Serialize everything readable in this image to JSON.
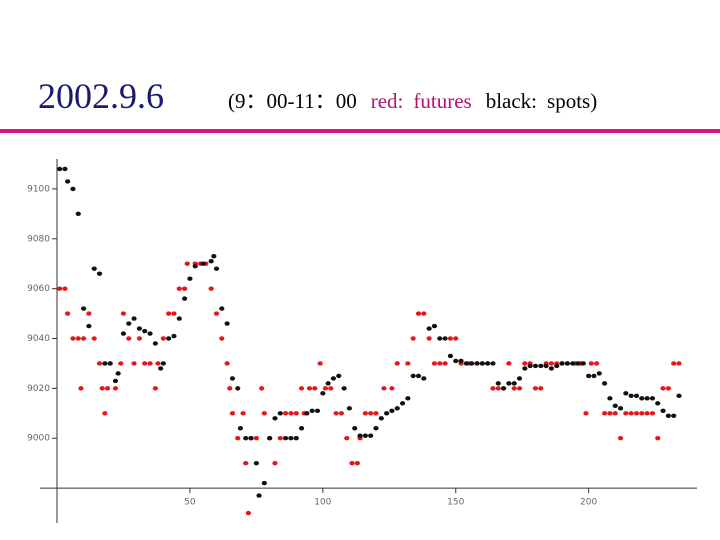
{
  "header": {
    "date": "2002.9.6",
    "note": {
      "range": "(9：00-11：00",
      "red_label": "red:",
      "red_desc": "futures",
      "black_label": "black:",
      "black_desc": "spots)"
    }
  },
  "chart_data": {
    "type": "scatter",
    "xlim": [
      0,
      237
    ],
    "ylim": [
      8966,
      9112
    ],
    "x_axis_crossing": 8980,
    "xticks": [
      50,
      100,
      150,
      200
    ],
    "yticks": [
      9000,
      9020,
      9040,
      9060,
      9080,
      9100
    ],
    "series": [
      {
        "color": "#e8141c",
        "x": [
          1,
          3,
          4,
          6,
          8,
          9,
          10,
          12,
          14,
          16,
          17,
          18,
          19,
          20,
          22,
          24,
          25,
          27,
          29,
          31,
          33,
          35,
          37,
          38,
          40,
          42,
          44,
          46,
          48,
          49,
          52,
          54,
          56,
          58,
          60,
          62,
          64,
          65,
          66,
          68,
          70,
          71,
          72,
          73,
          75,
          77,
          78,
          80,
          82,
          84,
          86,
          88,
          90,
          92,
          93,
          95,
          97,
          99,
          101,
          103,
          105,
          107,
          109,
          111,
          113,
          114,
          116,
          118,
          120,
          123,
          126,
          128,
          132,
          134,
          136,
          138,
          140,
          142,
          144,
          146,
          148,
          150,
          152,
          155,
          158,
          160,
          162,
          164,
          166,
          168,
          170,
          172,
          174,
          176,
          178,
          180,
          182,
          184,
          186,
          188,
          190,
          192,
          195,
          197,
          199,
          201,
          203,
          206,
          208,
          210,
          212,
          214,
          216,
          218,
          220,
          222,
          224,
          226,
          228,
          230,
          232,
          234
        ],
        "values": [
          9060,
          9060,
          9050,
          9040,
          9040,
          9020,
          9040,
          9050,
          9040,
          9030,
          9020,
          9010,
          9020,
          9030,
          9020,
          9030,
          9050,
          9040,
          9030,
          9040,
          9030,
          9030,
          9020,
          9030,
          9040,
          9050,
          9050,
          9060,
          9060,
          9070,
          9070,
          9070,
          9070,
          9060,
          9050,
          9040,
          9030,
          9020,
          9010,
          9000,
          9010,
          8990,
          8970,
          9000,
          9000,
          9020,
          9010,
          9000,
          8990,
          9000,
          9010,
          9010,
          9010,
          9020,
          9010,
          9020,
          9020,
          9030,
          9020,
          9020,
          9010,
          9010,
          9000,
          8990,
          8990,
          9000,
          9010,
          9010,
          9010,
          9020,
          9020,
          9030,
          9030,
          9040,
          9050,
          9050,
          9040,
          9030,
          9030,
          9030,
          9040,
          9040,
          9030,
          9030,
          9030,
          9030,
          9030,
          9020,
          9020,
          9020,
          9030,
          9020,
          9020,
          9030,
          9030,
          9020,
          9020,
          9030,
          9030,
          9030,
          9030,
          9030,
          9030,
          9030,
          9010,
          9030,
          9030,
          9010,
          9010,
          9010,
          9000,
          9010,
          9010,
          9010,
          9010,
          9010,
          9010,
          9000,
          9020,
          9020,
          9030,
          9030
        ]
      },
      {
        "color": "#111111",
        "x": [
          1,
          3,
          4,
          6,
          8,
          10,
          12,
          14,
          16,
          18,
          20,
          22,
          23,
          25,
          27,
          29,
          31,
          33,
          35,
          37,
          39,
          40,
          42,
          44,
          46,
          48,
          50,
          52,
          55,
          58,
          59,
          60,
          62,
          64,
          66,
          68,
          69,
          71,
          73,
          75,
          76,
          78,
          80,
          82,
          84,
          86,
          88,
          90,
          92,
          94,
          96,
          98,
          100,
          102,
          104,
          106,
          108,
          110,
          112,
          114,
          116,
          118,
          120,
          122,
          124,
          126,
          128,
          130,
          132,
          134,
          136,
          138,
          140,
          142,
          144,
          146,
          148,
          150,
          152,
          154,
          156,
          158,
          160,
          162,
          164,
          166,
          168,
          170,
          172,
          174,
          176,
          178,
          180,
          182,
          184,
          186,
          188,
          190,
          192,
          194,
          196,
          198,
          200,
          202,
          204,
          206,
          208,
          210,
          212,
          214,
          216,
          218,
          220,
          222,
          224,
          226,
          228,
          230,
          232,
          234
        ],
        "values": [
          9108,
          9108,
          9103,
          9100,
          9090,
          9052,
          9045,
          9068,
          9066,
          9030,
          9030,
          9023,
          9026,
          9042,
          9046,
          9048,
          9044,
          9043,
          9042,
          9038,
          9028,
          9030,
          9040,
          9041,
          9048,
          9056,
          9064,
          9069,
          9070,
          9071,
          9073,
          9068,
          9052,
          9046,
          9024,
          9020,
          9004,
          9000,
          9000,
          8990,
          8977,
          8982,
          9000,
          9008,
          9010,
          9000,
          9000,
          9000,
          9004,
          9010,
          9011,
          9011,
          9018,
          9022,
          9024,
          9025,
          9020,
          9012,
          9004,
          9001,
          9001,
          9001,
          9004,
          9008,
          9010,
          9011,
          9012,
          9014,
          9016,
          9025,
          9025,
          9024,
          9044,
          9045,
          9040,
          9040,
          9033,
          9031,
          9031,
          9030,
          9030,
          9030,
          9030,
          9030,
          9030,
          9022,
          9020,
          9022,
          9022,
          9024,
          9028,
          9029,
          9029,
          9029,
          9029,
          9028,
          9029,
          9030,
          9030,
          9030,
          9030,
          9030,
          9025,
          9025,
          9026,
          9022,
          9016,
          9013,
          9012,
          9018,
          9017,
          9017,
          9016,
          9016,
          9016,
          9014,
          9011,
          9009,
          9009,
          9017
        ]
      }
    ]
  }
}
